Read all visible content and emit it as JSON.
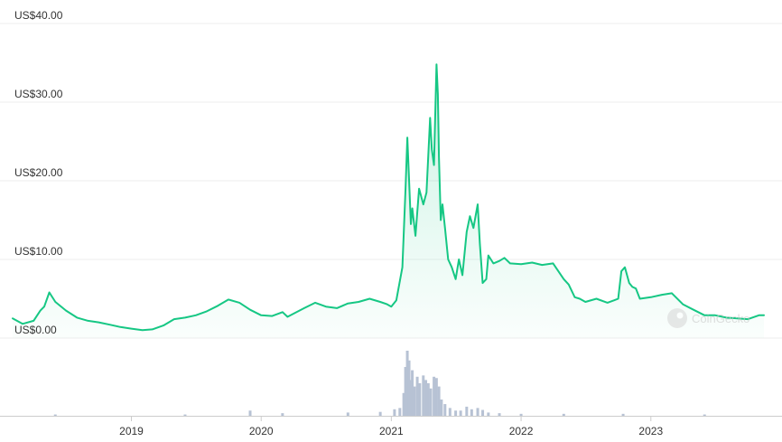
{
  "chart_data": {
    "type": "area",
    "series": [
      {
        "color": "#16c784",
        "x": [
          "2018-02-01",
          "2018-03-01",
          "2018-04-01",
          "2018-04-20",
          "2018-05-01",
          "2018-05-15",
          "2018-06-01",
          "2018-07-01",
          "2018-08-01",
          "2018-09-01",
          "2018-10-01",
          "2018-11-01",
          "2018-12-01",
          "2019-01-01",
          "2019-02-01",
          "2019-03-01",
          "2019-04-01",
          "2019-05-01",
          "2019-06-01",
          "2019-07-01",
          "2019-08-01",
          "2019-09-01",
          "2019-10-01",
          "2019-11-01",
          "2019-12-01",
          "2020-01-01",
          "2020-02-01",
          "2020-03-01",
          "2020-03-15",
          "2020-04-01",
          "2020-05-01",
          "2020-06-01",
          "2020-07-01",
          "2020-08-01",
          "2020-09-01",
          "2020-10-01",
          "2020-11-01",
          "2020-12-01",
          "2020-12-20",
          "2021-01-01",
          "2021-01-15",
          "2021-02-01",
          "2021-02-10",
          "2021-02-15",
          "2021-02-25",
          "2021-03-01",
          "2021-03-10",
          "2021-03-20",
          "2021-04-01",
          "2021-04-10",
          "2021-04-20",
          "2021-04-25",
          "2021-05-01",
          "2021-05-08",
          "2021-05-12",
          "2021-05-15",
          "2021-05-20",
          "2021-05-25",
          "2021-06-01",
          "2021-06-10",
          "2021-06-20",
          "2021-07-01",
          "2021-07-10",
          "2021-07-20",
          "2021-08-01",
          "2021-08-10",
          "2021-08-20",
          "2021-09-01",
          "2021-09-07",
          "2021-09-15",
          "2021-09-25",
          "2021-10-01",
          "2021-10-15",
          "2021-11-01",
          "2021-11-15",
          "2021-12-01",
          "2022-01-01",
          "2022-02-01",
          "2022-03-01",
          "2022-04-01",
          "2022-05-01",
          "2022-05-15",
          "2022-06-01",
          "2022-06-15",
          "2022-07-01",
          "2022-08-01",
          "2022-09-01",
          "2022-09-20",
          "2022-10-01",
          "2022-10-10",
          "2022-10-20",
          "2022-11-01",
          "2022-11-10",
          "2022-11-20",
          "2022-12-01",
          "2023-01-01",
          "2023-02-01",
          "2023-03-01",
          "2023-04-01",
          "2023-05-01",
          "2023-06-01",
          "2023-07-01",
          "2023-08-01",
          "2023-09-01",
          "2023-10-01",
          "2023-11-01",
          "2023-11-15"
        ],
        "y": [
          2.5,
          1.8,
          2.2,
          3.5,
          4.0,
          5.8,
          4.6,
          3.5,
          2.6,
          2.2,
          2.0,
          1.7,
          1.4,
          1.2,
          1.0,
          1.1,
          1.6,
          2.4,
          2.6,
          2.9,
          3.4,
          4.1,
          4.9,
          4.5,
          3.6,
          2.9,
          2.8,
          3.3,
          2.7,
          3.1,
          3.8,
          4.5,
          4.0,
          3.8,
          4.4,
          4.6,
          5.0,
          4.6,
          4.3,
          4.0,
          4.8,
          9.0,
          19.0,
          25.5,
          14.5,
          16.5,
          13.0,
          19.0,
          17.0,
          18.5,
          28.0,
          24.0,
          22.0,
          34.8,
          31.0,
          23.0,
          15.0,
          17.0,
          14.0,
          10.0,
          9.0,
          7.5,
          10.0,
          8.0,
          13.5,
          15.5,
          14.0,
          17.0,
          12.0,
          7.0,
          7.5,
          10.5,
          9.5,
          9.8,
          10.2,
          9.5,
          9.4,
          9.6,
          9.3,
          9.5,
          7.5,
          6.8,
          5.2,
          5.0,
          4.6,
          5.0,
          4.5,
          4.8,
          5.0,
          8.5,
          9.0,
          7.0,
          6.5,
          6.3,
          5.0,
          5.2,
          5.5,
          5.7,
          4.3,
          3.6,
          2.9,
          2.9,
          2.6,
          2.5,
          2.4,
          2.9,
          2.9
        ]
      }
    ],
    "volume": [
      {
        "x": "2018-06-01",
        "v": 0.02
      },
      {
        "x": "2019-06-01",
        "v": 0.02
      },
      {
        "x": "2019-12-01",
        "v": 0.08
      },
      {
        "x": "2020-03-01",
        "v": 0.04
      },
      {
        "x": "2020-09-01",
        "v": 0.05
      },
      {
        "x": "2020-12-01",
        "v": 0.06
      },
      {
        "x": "2021-01-10",
        "v": 0.1
      },
      {
        "x": "2021-01-25",
        "v": 0.12
      },
      {
        "x": "2021-02-05",
        "v": 0.35
      },
      {
        "x": "2021-02-10",
        "v": 0.75
      },
      {
        "x": "2021-02-15",
        "v": 1.0
      },
      {
        "x": "2021-02-20",
        "v": 0.85
      },
      {
        "x": "2021-02-25",
        "v": 0.55
      },
      {
        "x": "2021-03-01",
        "v": 0.7
      },
      {
        "x": "2021-03-07",
        "v": 0.45
      },
      {
        "x": "2021-03-15",
        "v": 0.6
      },
      {
        "x": "2021-03-22",
        "v": 0.5
      },
      {
        "x": "2021-04-01",
        "v": 0.62
      },
      {
        "x": "2021-04-08",
        "v": 0.55
      },
      {
        "x": "2021-04-15",
        "v": 0.5
      },
      {
        "x": "2021-04-22",
        "v": 0.42
      },
      {
        "x": "2021-05-01",
        "v": 0.6
      },
      {
        "x": "2021-05-08",
        "v": 0.58
      },
      {
        "x": "2021-05-15",
        "v": 0.45
      },
      {
        "x": "2021-05-22",
        "v": 0.25
      },
      {
        "x": "2021-06-01",
        "v": 0.18
      },
      {
        "x": "2021-06-15",
        "v": 0.12
      },
      {
        "x": "2021-07-01",
        "v": 0.08
      },
      {
        "x": "2021-07-15",
        "v": 0.08
      },
      {
        "x": "2021-08-01",
        "v": 0.14
      },
      {
        "x": "2021-08-15",
        "v": 0.1
      },
      {
        "x": "2021-09-01",
        "v": 0.12
      },
      {
        "x": "2021-09-15",
        "v": 0.09
      },
      {
        "x": "2021-10-01",
        "v": 0.05
      },
      {
        "x": "2021-11-01",
        "v": 0.04
      },
      {
        "x": "2022-01-01",
        "v": 0.03
      },
      {
        "x": "2022-05-01",
        "v": 0.03
      },
      {
        "x": "2022-10-15",
        "v": 0.03
      },
      {
        "x": "2023-06-01",
        "v": 0.02
      }
    ],
    "x_range": [
      "2018-02-01",
      "2023-11-15"
    ],
    "ylim": [
      0,
      40
    ],
    "y_ticks": [
      "US$0.00",
      "US$10.00",
      "US$20.00",
      "US$30.00",
      "US$40.00"
    ],
    "x_ticks": [
      "2019",
      "2020",
      "2021",
      "2022",
      "2023"
    ],
    "grid": "horizontal",
    "watermark": "CoinGecko",
    "volume_color": "#b7c2d4"
  }
}
